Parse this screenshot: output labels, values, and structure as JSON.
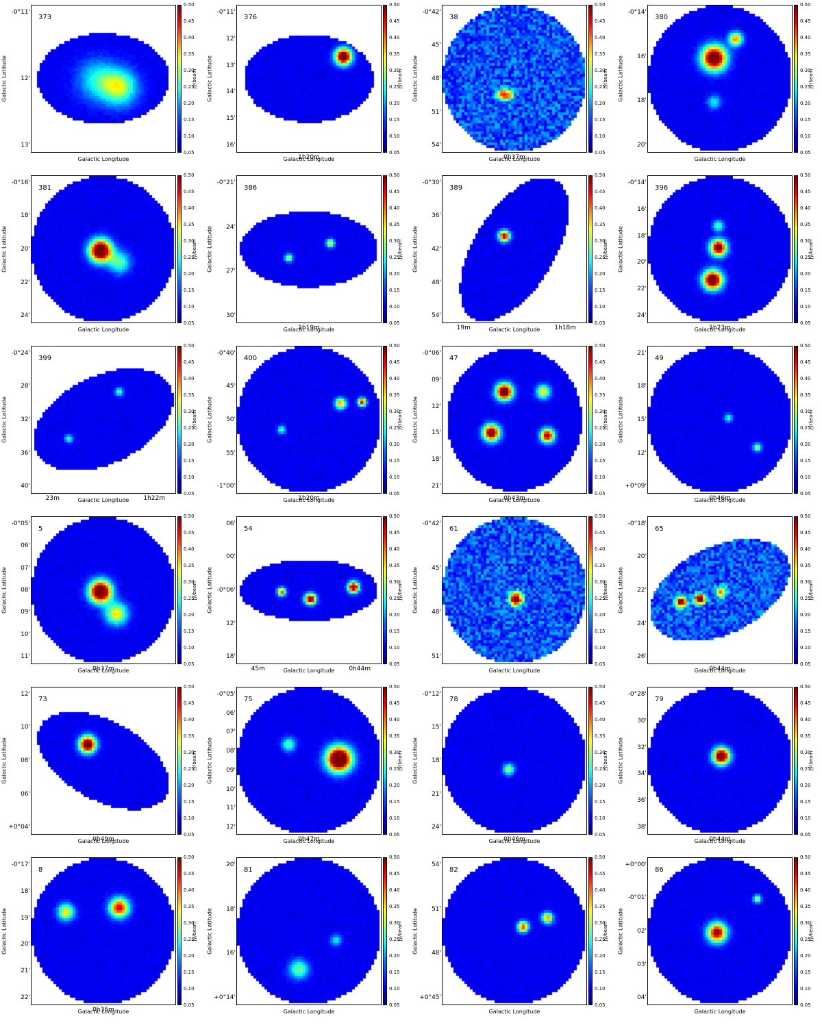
{
  "axis": {
    "x_label": "Galactic Longitude",
    "y_label": "Galactic Latitude",
    "cbar_label": "Jy/beam"
  },
  "colorbar_ticks": [
    "0.50",
    "0.45",
    "0.40",
    "0.35",
    "0.30",
    "0.25",
    "0.20",
    "0.15",
    "0.10",
    "0.05"
  ],
  "colormap": "jet",
  "panels": [
    {
      "id": "373",
      "shape": "ellipse",
      "dims": [
        0.92,
        0.62
      ],
      "y_ticks": [
        "-0°11'",
        "12'",
        "13'"
      ],
      "x_ticks": [],
      "blobs": [
        {
          "x": 0.6,
          "y": 0.55,
          "r": 0.13,
          "v": 0.25
        },
        {
          "x": 0.45,
          "y": 0.5,
          "r": 0.15,
          "v": 0.15
        }
      ]
    },
    {
      "id": "376",
      "shape": "ellipse",
      "dims": [
        0.9,
        0.6
      ],
      "y_ticks": [
        "-0°11'",
        "12'",
        "13'",
        "14'",
        "15'",
        "16'"
      ],
      "x_ticks": [
        "1h20m"
      ],
      "blobs": [
        {
          "x": 0.73,
          "y": 0.34,
          "r": 0.06,
          "v": 0.6
        }
      ]
    },
    {
      "id": "38",
      "shape": "circle",
      "dims": [
        1,
        1
      ],
      "y_ticks": [
        "-0°42'",
        "45'",
        "48'",
        "51'",
        "54'"
      ],
      "x_ticks": [
        "0h37m"
      ],
      "noisy": true,
      "blobs": [
        {
          "x": 0.4,
          "y": 0.6,
          "r": 0.04,
          "v": 0.3
        },
        {
          "x": 0.45,
          "y": 0.6,
          "r": 0.04,
          "v": 0.28
        }
      ]
    },
    {
      "id": "380",
      "shape": "circle",
      "dims": [
        1,
        1
      ],
      "y_ticks": [
        "-0°14'",
        "16'",
        "18'",
        "20'"
      ],
      "x_ticks": [],
      "blobs": [
        {
          "x": 0.45,
          "y": 0.35,
          "r": 0.09,
          "v": 0.6
        },
        {
          "x": 0.6,
          "y": 0.22,
          "r": 0.05,
          "v": 0.35
        },
        {
          "x": 0.45,
          "y": 0.65,
          "r": 0.05,
          "v": 0.15
        }
      ]
    },
    {
      "id": "381",
      "shape": "circle",
      "dims": [
        1,
        1
      ],
      "y_ticks": [
        "-0°16'",
        "18'",
        "20'",
        "22'",
        "24'"
      ],
      "x_ticks": [],
      "blobs": [
        {
          "x": 0.47,
          "y": 0.5,
          "r": 0.08,
          "v": 0.65
        },
        {
          "x": 0.6,
          "y": 0.58,
          "r": 0.08,
          "v": 0.2
        }
      ]
    },
    {
      "id": "386",
      "shape": "ellipse",
      "dims": [
        0.96,
        0.52
      ],
      "y_ticks": [
        "-0°21'",
        "24'",
        "27'",
        "30'"
      ],
      "x_ticks": [
        "1h19m"
      ],
      "blobs": [
        {
          "x": 0.64,
          "y": 0.45,
          "r": 0.03,
          "v": 0.3
        },
        {
          "x": 0.35,
          "y": 0.55,
          "r": 0.03,
          "v": 0.25
        }
      ]
    },
    {
      "id": "389",
      "shape": "ellipse_rot",
      "dims": [
        0.6,
        1.05
      ],
      "y_ticks": [
        "-0°30'",
        "36'",
        "42'",
        "48'",
        "54'"
      ],
      "x_ticks": [
        "19m",
        "1h18m"
      ],
      "blobs": [
        {
          "x": 0.42,
          "y": 0.4,
          "r": 0.04,
          "v": 0.5
        }
      ]
    },
    {
      "id": "396",
      "shape": "circle",
      "dims": [
        1,
        1
      ],
      "y_ticks": [
        "-0°14'",
        "16'",
        "18'",
        "20'",
        "22'",
        "24'"
      ],
      "x_ticks": [
        "1h23m"
      ],
      "blobs": [
        {
          "x": 0.48,
          "y": 0.48,
          "r": 0.06,
          "v": 0.55
        },
        {
          "x": 0.44,
          "y": 0.7,
          "r": 0.07,
          "v": 0.6
        },
        {
          "x": 0.48,
          "y": 0.33,
          "r": 0.04,
          "v": 0.2
        }
      ]
    },
    {
      "id": "399",
      "shape": "ellipse_rot2",
      "dims": [
        1.05,
        0.5
      ],
      "y_ticks": [
        "-0°24'",
        "28'",
        "32'",
        "36'",
        "40'"
      ],
      "x_ticks": [
        "23m",
        "1h22m"
      ],
      "blobs": [
        {
          "x": 0.6,
          "y": 0.3,
          "r": 0.03,
          "v": 0.2
        },
        {
          "x": 0.25,
          "y": 0.62,
          "r": 0.03,
          "v": 0.18
        }
      ]
    },
    {
      "id": "400",
      "shape": "circle",
      "dims": [
        1,
        1
      ],
      "y_ticks": [
        "-0°40'",
        "45'",
        "50'",
        "55'",
        "-1°00'"
      ],
      "x_ticks": [
        "1h20m"
      ],
      "blobs": [
        {
          "x": 0.71,
          "y": 0.38,
          "r": 0.04,
          "v": 0.35
        },
        {
          "x": 0.86,
          "y": 0.37,
          "r": 0.03,
          "v": 0.45
        },
        {
          "x": 0.3,
          "y": 0.56,
          "r": 0.03,
          "v": 0.2
        }
      ]
    },
    {
      "id": "47",
      "shape": "ellipse",
      "dims": [
        0.94,
        0.98
      ],
      "y_ticks": [
        "-0°06'",
        "09'",
        "12'",
        "15'",
        "18'",
        "21'"
      ],
      "x_ticks": [
        "0h43m"
      ],
      "blobs": [
        {
          "x": 0.42,
          "y": 0.3,
          "r": 0.06,
          "v": 0.6
        },
        {
          "x": 0.33,
          "y": 0.58,
          "r": 0.06,
          "v": 0.55
        },
        {
          "x": 0.72,
          "y": 0.6,
          "r": 0.05,
          "v": 0.5
        },
        {
          "x": 0.69,
          "y": 0.3,
          "r": 0.05,
          "v": 0.3
        }
      ]
    },
    {
      "id": "49",
      "shape": "circle",
      "dims": [
        1,
        1
      ],
      "y_ticks": [
        "21'",
        "18'",
        "15'",
        "12'",
        "+0°09'"
      ],
      "x_ticks": [
        "0h46m"
      ],
      "blobs": [
        {
          "x": 0.75,
          "y": 0.68,
          "r": 0.03,
          "v": 0.25
        },
        {
          "x": 0.55,
          "y": 0.48,
          "r": 0.03,
          "v": 0.18
        }
      ]
    },
    {
      "id": "5",
      "shape": "circle",
      "dims": [
        1,
        1
      ],
      "y_ticks": [
        "-0°05'",
        "06'",
        "07'",
        "08'",
        "09'",
        "10'",
        "11'"
      ],
      "x_ticks": [
        "0h37m"
      ],
      "blobs": [
        {
          "x": 0.47,
          "y": 0.5,
          "r": 0.08,
          "v": 0.65
        },
        {
          "x": 0.58,
          "y": 0.65,
          "r": 0.08,
          "v": 0.3
        }
      ]
    },
    {
      "id": "54",
      "shape": "ellipse",
      "dims": [
        0.96,
        0.42
      ],
      "y_ticks": [
        "06'",
        "00'",
        "-0°06'",
        "12'",
        "18'"
      ],
      "x_ticks": [
        "45m",
        "0h44m"
      ],
      "blobs": [
        {
          "x": 0.5,
          "y": 0.55,
          "r": 0.04,
          "v": 0.55
        },
        {
          "x": 0.8,
          "y": 0.47,
          "r": 0.04,
          "v": 0.55
        },
        {
          "x": 0.3,
          "y": 0.5,
          "r": 0.03,
          "v": 0.4
        }
      ]
    },
    {
      "id": "61",
      "shape": "circle",
      "dims": [
        1,
        1
      ],
      "y_ticks": [
        "-0°42'",
        "45'",
        "48'",
        "51'"
      ],
      "x_ticks": [],
      "noisy": true,
      "blobs": [
        {
          "x": 0.5,
          "y": 0.55,
          "r": 0.05,
          "v": 0.5
        }
      ]
    },
    {
      "id": "65",
      "shape": "ellipse_rot2",
      "dims": [
        1.05,
        0.62
      ],
      "y_ticks": [
        "-0°18'",
        "20'",
        "22'",
        "24'",
        "26'"
      ],
      "x_ticks": [
        "0h44m"
      ],
      "noisy": true,
      "blobs": [
        {
          "x": 0.35,
          "y": 0.55,
          "r": 0.04,
          "v": 0.55
        },
        {
          "x": 0.22,
          "y": 0.57,
          "r": 0.04,
          "v": 0.5
        },
        {
          "x": 0.5,
          "y": 0.5,
          "r": 0.04,
          "v": 0.3
        }
      ]
    },
    {
      "id": "73",
      "shape": "ellipse_rot3",
      "dims": [
        1.0,
        0.55
      ],
      "y_ticks": [
        "12'",
        "10'",
        "08'",
        "06'",
        "+0°04'"
      ],
      "x_ticks": [
        "0h49m"
      ],
      "blobs": [
        {
          "x": 0.38,
          "y": 0.38,
          "r": 0.06,
          "v": 0.6
        }
      ]
    },
    {
      "id": "75",
      "shape": "circle",
      "dims": [
        1,
        1
      ],
      "y_ticks": [
        "-0°05'",
        "06'",
        "07'",
        "08'",
        "09'",
        "10'",
        "11'",
        "12'"
      ],
      "x_ticks": [
        "0h47m"
      ],
      "blobs": [
        {
          "x": 0.7,
          "y": 0.48,
          "r": 0.09,
          "v": 0.7
        },
        {
          "x": 0.35,
          "y": 0.38,
          "r": 0.05,
          "v": 0.2
        }
      ]
    },
    {
      "id": "78",
      "shape": "circle",
      "dims": [
        1,
        1
      ],
      "y_ticks": [
        "-0°12'",
        "15'",
        "18'",
        "21'",
        "24'"
      ],
      "x_ticks": [
        "0h46m"
      ],
      "blobs": [
        {
          "x": 0.45,
          "y": 0.55,
          "r": 0.04,
          "v": 0.25
        }
      ]
    },
    {
      "id": "79",
      "shape": "circle",
      "dims": [
        1,
        1
      ],
      "y_ticks": [
        "-0°28'",
        "30'",
        "32'",
        "34'",
        "36'",
        "38'"
      ],
      "x_ticks": [
        "0h44m"
      ],
      "blobs": [
        {
          "x": 0.5,
          "y": 0.46,
          "r": 0.06,
          "v": 0.6
        }
      ]
    },
    {
      "id": "8",
      "shape": "circle",
      "dims": [
        1,
        1
      ],
      "y_ticks": [
        "-0°17'",
        "18'",
        "19'",
        "20'",
        "21'",
        "22'"
      ],
      "x_ticks": [
        "0h36m"
      ],
      "blobs": [
        {
          "x": 0.6,
          "y": 0.33,
          "r": 0.07,
          "v": 0.45
        },
        {
          "x": 0.23,
          "y": 0.36,
          "r": 0.06,
          "v": 0.3
        }
      ]
    },
    {
      "id": "81",
      "shape": "circle",
      "dims": [
        1,
        1
      ],
      "y_ticks": [
        "20'",
        "18'",
        "16'",
        "+0°14'"
      ],
      "x_ticks": [],
      "blobs": [
        {
          "x": 0.42,
          "y": 0.75,
          "r": 0.07,
          "v": 0.22
        },
        {
          "x": 0.68,
          "y": 0.55,
          "r": 0.04,
          "v": 0.15
        }
      ]
    },
    {
      "id": "82",
      "shape": "circle",
      "dims": [
        1,
        1
      ],
      "y_ticks": [
        "54'",
        "51'",
        "48'",
        "+0°45'"
      ],
      "x_ticks": [],
      "blobs": [
        {
          "x": 0.55,
          "y": 0.46,
          "r": 0.04,
          "v": 0.4
        },
        {
          "x": 0.72,
          "y": 0.4,
          "r": 0.04,
          "v": 0.35
        }
      ]
    },
    {
      "id": "86",
      "shape": "circle",
      "dims": [
        1,
        1
      ],
      "y_ticks": [
        "+0°00'",
        "-0°01'",
        "02'",
        "03'",
        "04'"
      ],
      "x_ticks": [],
      "blobs": [
        {
          "x": 0.47,
          "y": 0.5,
          "r": 0.07,
          "v": 0.5
        },
        {
          "x": 0.75,
          "y": 0.27,
          "r": 0.03,
          "v": 0.25
        }
      ]
    }
  ]
}
